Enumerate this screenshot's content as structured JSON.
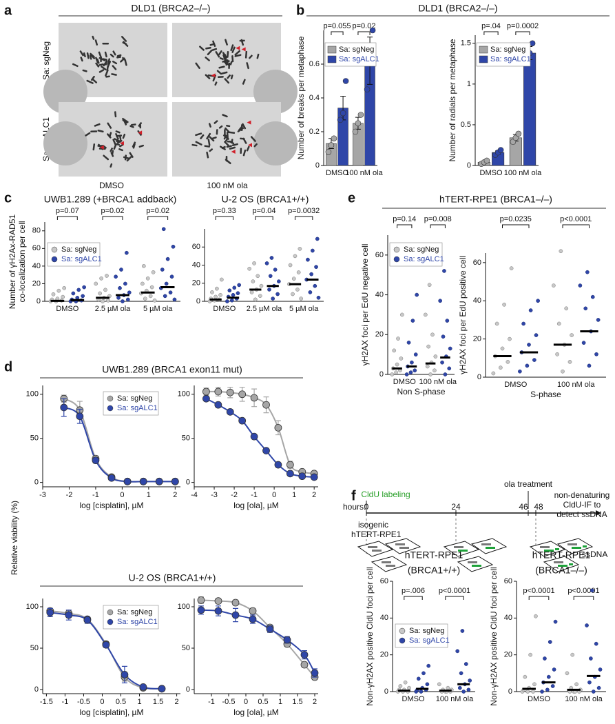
{
  "panel_labels": [
    "a",
    "b",
    "c",
    "d",
    "e",
    "f"
  ],
  "panel_a": {
    "title": "DLD1 (BRCA2–/–)",
    "rows": [
      "Sa: sgNeg",
      "Sa: sgALC1"
    ],
    "columns": [
      "DMSO",
      "100 nM ola"
    ]
  },
  "panel_f_diagram": {
    "cldu": "CldU labeling",
    "ola": "ola treatment",
    "hours_label": "hours:",
    "hours": [
      "0",
      "24",
      "46",
      "48"
    ],
    "readout": [
      "non-denaturing",
      "CldU-IF to",
      "detect ssDNA"
    ],
    "cells": [
      "isogenic",
      "hTERT-RPE1"
    ],
    "ssdna": "ssDNA"
  },
  "chart_data": [
    {
      "type": "bar",
      "title": "DLD1 (BRCA2–/–)",
      "ylabel": "Number of breaks per metaphase",
      "categories": [
        "DMSO",
        "100 nM ola"
      ],
      "ylim": [
        0,
        0.8
      ],
      "yticks": [
        0,
        0.2,
        0.4,
        0.6
      ],
      "pvalues": [
        "p=0.055",
        "p=0.02"
      ],
      "legend": true,
      "series": [
        {
          "name": "Sa: sgNeg",
          "color": "#a6a6a6",
          "values": [
            0.13,
            0.25
          ],
          "errors": [
            0.03,
            0.035
          ],
          "points": [
            [
              0.08,
              0.12,
              0.16
            ],
            [
              0.2,
              0.25,
              0.3
            ]
          ]
        },
        {
          "name": "Sa: sgALC1",
          "color": "#2f46a8",
          "values": [
            0.34,
            0.62
          ],
          "errors": [
            0.07,
            0.14
          ],
          "points": [
            [
              0.27,
              0.31,
              0.5
            ],
            [
              0.45,
              0.62,
              0.8
            ]
          ]
        }
      ]
    },
    {
      "type": "bar",
      "ylabel": "Number of radials per metaphase",
      "categories": [
        "DMSO",
        "100 nM ola"
      ],
      "ylim": [
        0,
        1.6
      ],
      "yticks": [
        0,
        0.5,
        1,
        1.5
      ],
      "pvalues": [
        "p=.04",
        "p=0.0002"
      ],
      "legend": true,
      "series": [
        {
          "name": "Sa: sgNeg",
          "color": "#a6a6a6",
          "values": [
            0.04,
            0.34
          ],
          "errors": [
            0.01,
            0.04
          ],
          "points": [
            [
              0.02,
              0.04,
              0.06
            ],
            [
              0.29,
              0.34,
              0.39
            ]
          ]
        },
        {
          "name": "Sa: sgALC1",
          "color": "#2f46a8",
          "values": [
            0.16,
            1.38
          ],
          "errors": [
            0.02,
            0.08
          ],
          "points": [
            [
              0.13,
              0.16,
              0.19
            ],
            [
              1.28,
              1.38,
              1.5
            ]
          ]
        }
      ]
    },
    {
      "type": "strip",
      "title": "UWB1.289 (+BRCA1 addback)",
      "ylabel": [
        "Number of γH2Ax-RAD51",
        "co-localization per cell"
      ],
      "categories": [
        "DMSO",
        "2.5 µM ola",
        "5 µM ola"
      ],
      "ylim": [
        0,
        90
      ],
      "yticks": [
        0,
        20,
        40,
        60,
        80
      ],
      "pvalues": [
        "p=0.07",
        "p=0.02",
        "p=0.02"
      ],
      "legend": true,
      "series": [
        {
          "name": "Sa: sgNeg",
          "color": "#c8c8c8",
          "values": [
            0.5,
            4,
            10
          ],
          "points": [
            [
              0,
              0,
              1,
              2,
              3,
              5,
              8,
              12,
              15
            ],
            [
              0,
              1,
              2,
              4,
              6,
              9,
              13,
              20,
              26,
              29
            ],
            [
              1,
              3,
              6,
              9,
              12,
              16,
              20,
              26,
              33,
              40
            ]
          ]
        },
        {
          "name": "Sa: sgALC1",
          "color": "#2f46a8",
          "values": [
            1.5,
            7,
            16
          ],
          "points": [
            [
              0,
              0,
              1,
              2,
              4,
              6,
              9,
              13,
              16
            ],
            [
              0,
              2,
              4,
              7,
              10,
              15,
              20,
              28,
              36,
              55
            ],
            [
              2,
              6,
              10,
              15,
              20,
              28,
              36,
              48,
              62,
              82
            ]
          ]
        }
      ]
    },
    {
      "type": "strip",
      "title": "U-2 OS (BRCA1+/+)",
      "categories": [
        "DMSO",
        "2.5 µM ola",
        "5 µM ola"
      ],
      "ylim": [
        0,
        80
      ],
      "yticks": [
        0,
        20,
        40,
        60
      ],
      "pvalues": [
        "p=0.33",
        "p=0.04",
        "p=0.0032"
      ],
      "legend": false,
      "series": [
        {
          "name": "Sa: sgNeg",
          "color": "#c8c8c8",
          "values": [
            2,
            13,
            19
          ],
          "points": [
            [
              0,
              1,
              2,
              3,
              5,
              7,
              10,
              14,
              24
            ],
            [
              2,
              6,
              10,
              13,
              17,
              22,
              28,
              36,
              42
            ],
            [
              3,
              8,
              13,
              19,
              25,
              32,
              40,
              50,
              58
            ]
          ]
        },
        {
          "name": "Sa: sgALC1",
          "color": "#2f46a8",
          "values": [
            4,
            17,
            24
          ],
          "points": [
            [
              0,
              1,
              3,
              5,
              7,
              9,
              12,
              15,
              18
            ],
            [
              3,
              8,
              13,
              17,
              22,
              28,
              35,
              42,
              48
            ],
            [
              4,
              10,
              17,
              24,
              30,
              38,
              46,
              56,
              69
            ]
          ]
        }
      ]
    },
    {
      "type": "strip",
      "title": "hTERT-RPE1 (BRCA1–/–)",
      "ylabel": "γH2AX foci per EdU negative cell",
      "xlabel": "Non S-phase",
      "categories": [
        "DMSO",
        "100 nM ola"
      ],
      "ylim": [
        0,
        70
      ],
      "yticks": [
        0,
        20,
        40,
        60
      ],
      "pvalues": [
        "p=0.14",
        "p=0.008"
      ],
      "legend": true,
      "series": [
        {
          "name": "Sa: sgNeg",
          "color": "#c8c8c8",
          "values": [
            3,
            5.5
          ],
          "points": [
            [
              0,
              1,
              2,
              3,
              5,
              8,
              12,
              18,
              30
            ],
            [
              0,
              2,
              4,
              6,
              9,
              14,
              20,
              30,
              45
            ]
          ]
        },
        {
          "name": "Sa: sgALC1",
          "color": "#2f46a8",
          "values": [
            4,
            8.5
          ],
          "points": [
            [
              0,
              1,
              2,
              4,
              6,
              10,
              16,
              27,
              40
            ],
            [
              0,
              3,
              6,
              9,
              13,
              19,
              27,
              37,
              52
            ]
          ]
        }
      ]
    },
    {
      "type": "strip",
      "ylabel": "γH2AX foci per EdU positive cell",
      "xlabel": "S-phase",
      "categories": [
        "DMSO",
        "100 nM ola"
      ],
      "ylim": [
        0,
        65
      ],
      "yticks": [
        0,
        20,
        40,
        60
      ],
      "pvalues": [
        "p=0.0235",
        "p<0.0001"
      ],
      "legend": false,
      "series": [
        {
          "name": "Sa: sgNeg",
          "color": "#c8c8c8",
          "values": [
            11,
            17
          ],
          "points": [
            [
              2,
              5,
              8,
              11,
              15,
              20,
              28,
              38,
              57
            ],
            [
              3,
              8,
              12,
              17,
              22,
              28,
              36,
              48,
              66
            ]
          ]
        },
        {
          "name": "Sa: sgALC1",
          "color": "#2f46a8",
          "values": [
            13,
            24
          ],
          "points": [
            [
              3,
              6,
              9,
              13,
              17,
              22,
              28,
              35,
              40
            ],
            [
              6,
              12,
              18,
              24,
              30,
              36,
              42,
              48,
              55
            ]
          ]
        }
      ]
    },
    {
      "type": "line",
      "title": "UWB1.289 (BRCA1 exon11 mut)",
      "ylabel": "Relative viability (%)",
      "xlabel": "log [cisplatin], µM",
      "xlim": [
        -3,
        2.2
      ],
      "xticks": [
        -3,
        -2,
        -1,
        0,
        1,
        2
      ],
      "ylim": [
        -5,
        110
      ],
      "yticks": [
        0,
        50,
        100
      ],
      "legend": true,
      "x": [
        -2.2,
        -1.6,
        -1,
        -0.4,
        0.2,
        0.8,
        1.4,
        2
      ],
      "series": [
        {
          "name": "Sa: sgNeg",
          "color": "#a6a6a6",
          "values": [
            95,
            82,
            27,
            6,
            1,
            1,
            1,
            1
          ],
          "errors": [
            4,
            10,
            3,
            1,
            0,
            0,
            0,
            0
          ]
        },
        {
          "name": "Sa: sgALC1",
          "color": "#2f46a8",
          "values": [
            85,
            75,
            25,
            5,
            1,
            1,
            1,
            1
          ],
          "errors": [
            10,
            8,
            3,
            1,
            0,
            0,
            0,
            0
          ]
        }
      ]
    },
    {
      "type": "line",
      "xlabel": "log [ola], µM",
      "xlim": [
        -4,
        2.2
      ],
      "xticks": [
        -4,
        -3,
        -2,
        -1,
        0,
        1,
        2
      ],
      "ylim": [
        -5,
        110
      ],
      "yticks": [
        0,
        50,
        100
      ],
      "legend": false,
      "x": [
        -3.4,
        -2.8,
        -2.2,
        -1.6,
        -1,
        -0.4,
        0.2,
        0.8,
        1.4,
        2
      ],
      "series": [
        {
          "name": "Sa: sgNeg",
          "color": "#a6a6a6",
          "values": [
            103,
            103,
            102,
            100,
            96,
            88,
            62,
            20,
            12,
            10
          ],
          "errors": [
            4,
            5,
            6,
            8,
            10,
            9,
            8,
            4,
            2,
            2
          ]
        },
        {
          "name": "Sa: sgALC1",
          "color": "#2f46a8",
          "values": [
            95,
            88,
            80,
            70,
            52,
            36,
            20,
            10,
            7,
            6
          ],
          "errors": [
            2,
            2,
            2,
            2,
            2,
            2,
            2,
            1,
            1,
            1
          ]
        }
      ]
    },
    {
      "type": "line",
      "title": "U-2 OS (BRCA1+/+)",
      "xlabel": "log [cisplatin], µM",
      "xlim": [
        -1.6,
        2.1
      ],
      "xticks": [
        -1.5,
        -1,
        -0.5,
        0,
        0.5,
        1,
        1.5,
        2
      ],
      "ylim": [
        -5,
        110
      ],
      "yticks": [
        0,
        50,
        100
      ],
      "legend": true,
      "x": [
        -1.4,
        -0.9,
        -0.4,
        0.1,
        0.6,
        1.1,
        1.6
      ],
      "series": [
        {
          "name": "Sa: sgNeg",
          "color": "#a6a6a6",
          "values": [
            95,
            92,
            85,
            55,
            15,
            2,
            1
          ],
          "errors": [
            3,
            4,
            3,
            3,
            5,
            1,
            0
          ]
        },
        {
          "name": "Sa: sgALC1",
          "color": "#2f46a8",
          "values": [
            93,
            90,
            84,
            54,
            18,
            3,
            1
          ],
          "errors": [
            5,
            6,
            4,
            3,
            10,
            1,
            0
          ]
        }
      ]
    },
    {
      "type": "line",
      "xlabel": "log [ola], µM",
      "xlim": [
        -1.5,
        2.1
      ],
      "xticks": [
        -1,
        -0.5,
        0,
        0.5,
        1,
        1.5,
        2
      ],
      "ylim": [
        -5,
        110
      ],
      "yticks": [
        0,
        50,
        100
      ],
      "legend": false,
      "x": [
        -1.3,
        -0.8,
        -0.3,
        0.2,
        0.7,
        1.2,
        1.7,
        2
      ],
      "series": [
        {
          "name": "Sa: sgNeg",
          "color": "#a6a6a6",
          "values": [
            108,
            107,
            105,
            95,
            75,
            55,
            30,
            15
          ],
          "errors": [
            4,
            3,
            3,
            3,
            3,
            3,
            3,
            3
          ]
        },
        {
          "name": "Sa: sgALC1",
          "color": "#2f46a8",
          "values": [
            96,
            95,
            90,
            85,
            73,
            60,
            42,
            20
          ],
          "errors": [
            5,
            6,
            8,
            5,
            4,
            4,
            5,
            5
          ]
        }
      ]
    },
    {
      "type": "strip",
      "title": [
        "hTERT-RPE1",
        "(BRCA1+/+)"
      ],
      "ylabel": "Non-γH2AX positive CldU foci per cell",
      "categories": [
        "DMSO",
        "100 nM ola"
      ],
      "ylim": [
        0,
        60
      ],
      "yticks": [
        0,
        20,
        40,
        60
      ],
      "pvalues": [
        "p=.006",
        "p<0.0001"
      ],
      "legend": true,
      "series": [
        {
          "name": "Sa: sgNeg",
          "color": "#c8c8c8",
          "values": [
            0.5,
            0.5
          ],
          "points": [
            [
              0,
              0,
              0,
              1,
              1,
              2,
              3,
              5
            ],
            [
              0,
              0,
              0,
              0,
              1,
              1,
              2,
              4
            ]
          ]
        },
        {
          "name": "Sa: sgALC1",
          "color": "#2f46a8",
          "values": [
            1.5,
            4
          ],
          "points": [
            [
              0,
              0,
              1,
              1,
              2,
              4,
              7,
              10,
              14
            ],
            [
              0,
              1,
              2,
              4,
              6,
              10,
              15,
              22,
              33
            ]
          ]
        }
      ]
    },
    {
      "type": "strip",
      "title": [
        "hTERT-RPE1",
        "(BRCA1–/–)"
      ],
      "ylabel": "Non-γH2AX positive CldU foci per cell",
      "categories": [
        "DMSO",
        "100 nM ola"
      ],
      "ylim": [
        0,
        60
      ],
      "yticks": [
        0,
        20,
        40,
        60
      ],
      "pvalues": [
        "p<0.0001",
        "p<0.0001"
      ],
      "legend": false,
      "series": [
        {
          "name": "Sa: sgNeg",
          "color": "#c8c8c8",
          "values": [
            1.5,
            1
          ],
          "points": [
            [
              0,
              0,
              0,
              1,
              2,
              4,
              8,
              20,
              41
            ],
            [
              0,
              0,
              0,
              0,
              1,
              2,
              4,
              10,
              20
            ]
          ]
        },
        {
          "name": "Sa: sgALC1",
          "color": "#2f46a8",
          "values": [
            5,
            8.5
          ],
          "points": [
            [
              0,
              1,
              3,
              5,
              8,
              12,
              18,
              27,
              38
            ],
            [
              0,
              2,
              5,
              8,
              12,
              18,
              26,
              36,
              55
            ]
          ]
        }
      ]
    }
  ]
}
